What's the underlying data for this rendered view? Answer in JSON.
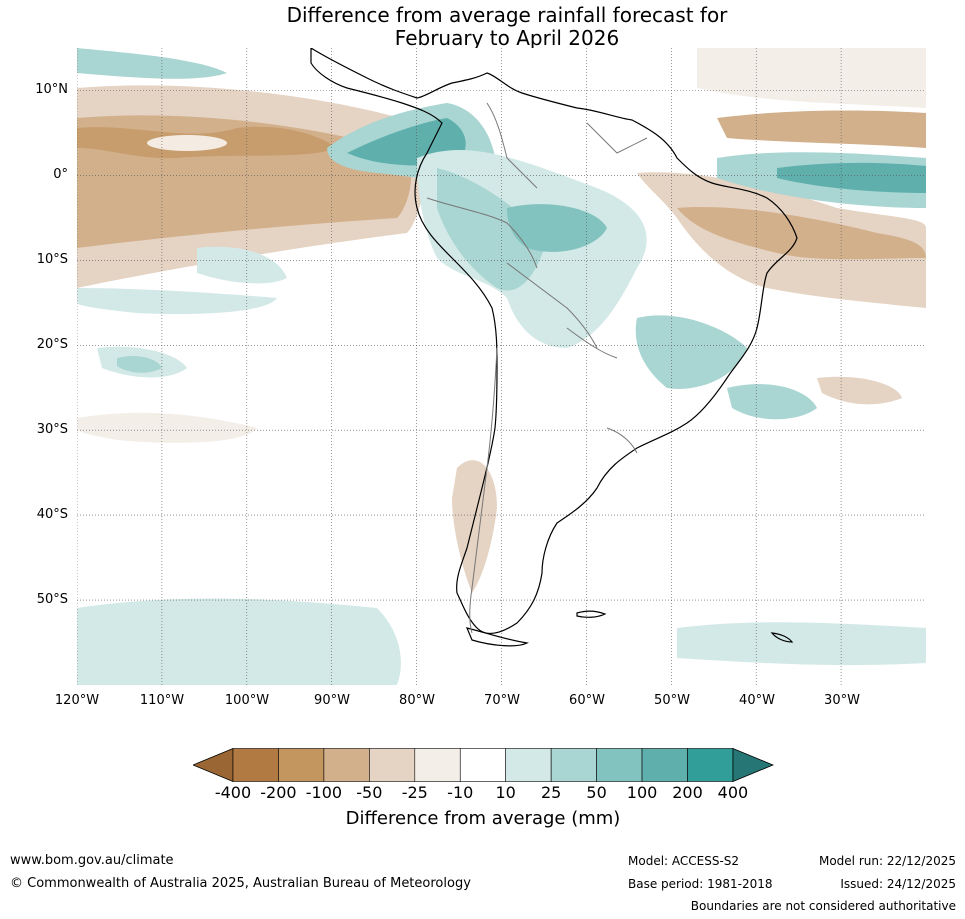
{
  "title": {
    "line1": "Difference from average rainfall forecast for",
    "line2": "February to April 2026"
  },
  "map": {
    "latitude_labels": [
      "10°N",
      "0°",
      "10°S",
      "20°S",
      "30°S",
      "40°S",
      "50°S"
    ],
    "longitude_labels": [
      "120°W",
      "110°W",
      "100°W",
      "90°W",
      "80°W",
      "70°W",
      "60°W",
      "50°W",
      "40°W",
      "30°W"
    ],
    "latitude_values": [
      10,
      0,
      -10,
      -20,
      -30,
      -40,
      -50
    ],
    "longitude_values": [
      -120,
      -110,
      -100,
      -90,
      -80,
      -70,
      -60,
      -50,
      -40,
      -30
    ],
    "extent": {
      "lon_min": -121,
      "lon_max": -21,
      "lat_min": -60,
      "lat_max": 15
    }
  },
  "colorbar": {
    "label": "Difference from average (mm)",
    "ticks": [
      "-400",
      "-200",
      "-100",
      "-50",
      "-25",
      "-10",
      "10",
      "25",
      "50",
      "100",
      "200",
      "400"
    ],
    "colors": [
      "#9a6634",
      "#b07a42",
      "#c3955f",
      "#d3b08c",
      "#e5d3c3",
      "#f3eee8",
      "#ffffff",
      "#d3e9e7",
      "#a9d5d2",
      "#82c2bf",
      "#5fb0ad",
      "#329e9a",
      "#257674"
    ]
  },
  "footer": {
    "url": "www.bom.gov.au/climate",
    "copyright": "© Commonwealth of Australia 2025, Australian Bureau of Meteorology",
    "model": "Model: ACCESS-S2",
    "base_period": "Base period: 1981-2018",
    "model_run": "Model run: 22/12/2025",
    "issued": "Issued: 24/12/2025",
    "disclaimer": "Boundaries are not considered authoritative"
  }
}
